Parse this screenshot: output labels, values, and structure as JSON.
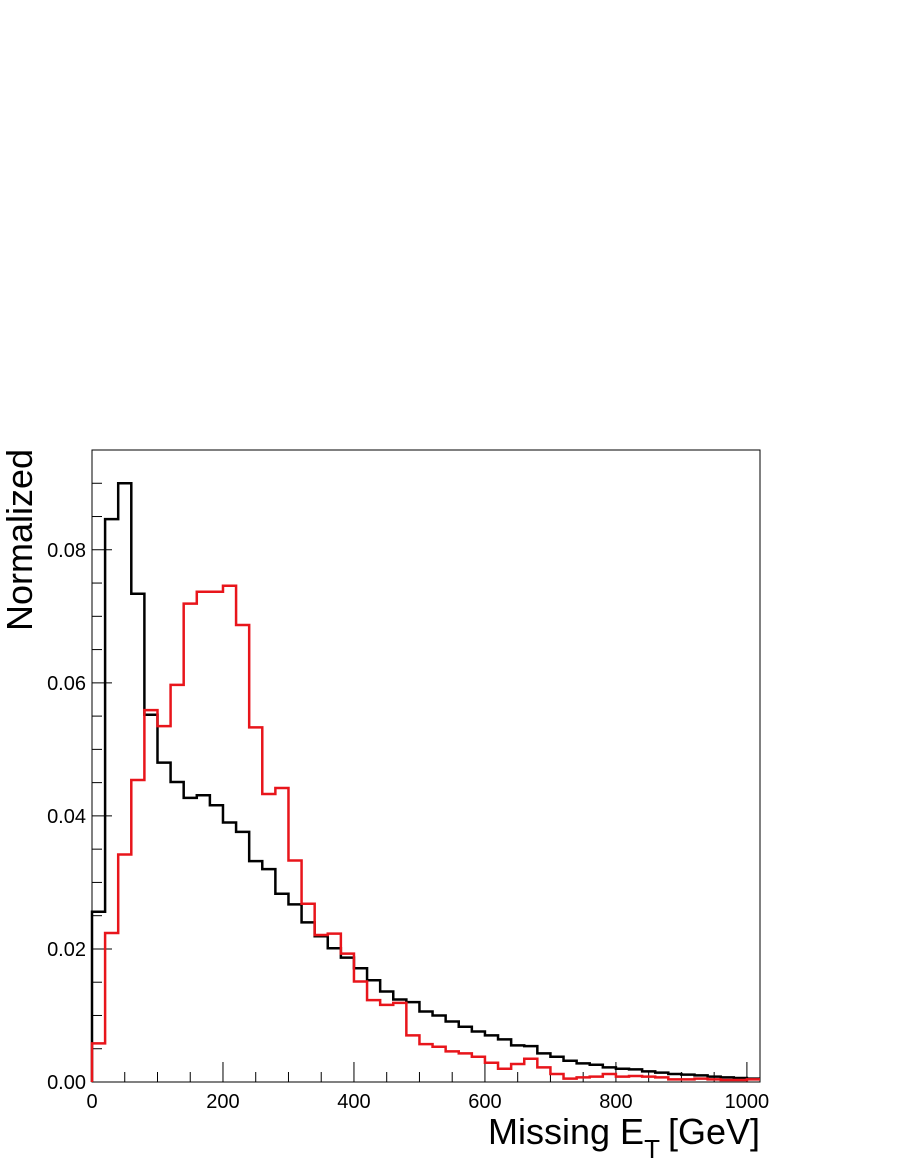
{
  "chart_data": {
    "type": "histogram",
    "title": "",
    "xlabel": {
      "main": "Missing E",
      "subscript": "T",
      "unit": "[GeV]"
    },
    "ylabel": "Normalized",
    "xlim": [
      0,
      1020
    ],
    "ylim": [
      0,
      0.095
    ],
    "bin_width": 20,
    "x_ticks": [
      0,
      200,
      400,
      600,
      800,
      1000
    ],
    "y_ticks": [
      0.0,
      0.02,
      0.04,
      0.06,
      0.08
    ],
    "y_tick_labels": [
      "0.00",
      "0.02",
      "0.04",
      "0.06",
      "0.08"
    ],
    "grid": false,
    "legend": "none",
    "series": [
      {
        "color": "#000000",
        "values": [
          0.0256,
          0.0846,
          0.09,
          0.0734,
          0.0552,
          0.048,
          0.0451,
          0.0427,
          0.0431,
          0.0416,
          0.039,
          0.0376,
          0.0332,
          0.032,
          0.0283,
          0.0267,
          0.024,
          0.0219,
          0.0201,
          0.0187,
          0.0171,
          0.0153,
          0.0136,
          0.0124,
          0.012,
          0.0106,
          0.01,
          0.0091,
          0.0083,
          0.0076,
          0.007,
          0.0064,
          0.0055,
          0.0054,
          0.0043,
          0.0038,
          0.0032,
          0.0028,
          0.0026,
          0.0022,
          0.002,
          0.0019,
          0.0016,
          0.0014,
          0.0012,
          0.0011,
          0.001,
          0.0008,
          0.0007,
          0.0006,
          0.0005
        ]
      },
      {
        "color": "#e8151b",
        "values": [
          0.0058,
          0.0224,
          0.0342,
          0.0454,
          0.0559,
          0.0535,
          0.0597,
          0.0719,
          0.0737,
          0.0737,
          0.0746,
          0.0687,
          0.0533,
          0.0433,
          0.0442,
          0.0333,
          0.0268,
          0.0221,
          0.0223,
          0.0193,
          0.0151,
          0.0123,
          0.0116,
          0.0119,
          0.007,
          0.0057,
          0.0053,
          0.0046,
          0.0043,
          0.0038,
          0.0029,
          0.002,
          0.0027,
          0.0035,
          0.0022,
          0.0012,
          0.0005,
          0.0007,
          0.0008,
          0.0012,
          0.0008,
          0.0009,
          0.0008,
          0.0007,
          0.0004,
          0.0004,
          0.0005,
          0.0004,
          0.0003,
          0.0003,
          0.0004
        ]
      }
    ]
  }
}
